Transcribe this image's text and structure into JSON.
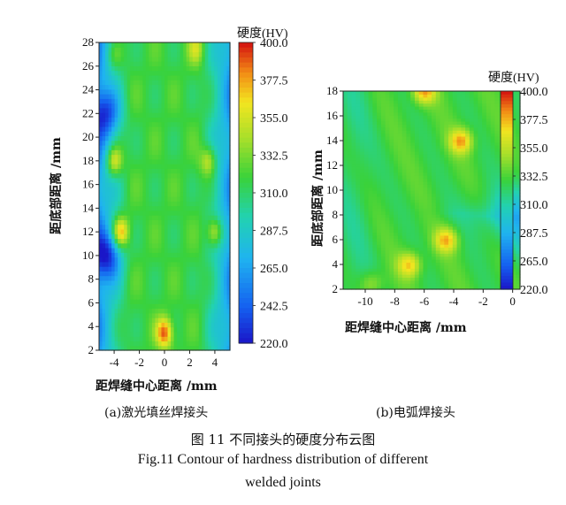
{
  "chart_data": [
    {
      "type": "heatmap",
      "panel_label": "(a)激光填丝焊接头",
      "xlabel": "距焊缝中心距离 /mm",
      "ylabel": "距底部距离 /mm",
      "x_ticks": [
        -4,
        -2,
        0,
        2,
        4
      ],
      "y_ticks": [
        2,
        4,
        6,
        8,
        10,
        12,
        14,
        16,
        18,
        20,
        22,
        24,
        26,
        28
      ],
      "xlim": [
        -5.2,
        5.2
      ],
      "ylim": [
        2,
        28
      ],
      "colorbar_title": "硬度(HV)",
      "colorbar_ticks": [
        "400.0",
        "377.5",
        "355.0",
        "332.5",
        "310.0",
        "287.5",
        "265.0",
        "242.5",
        "220.0"
      ],
      "value_range": [
        220,
        400
      ],
      "features": {
        "edge_min": 262,
        "center": 318,
        "low_spots": [
          {
            "x": -4.5,
            "y": 10,
            "v": 252
          },
          {
            "x": -4.6,
            "y": 22,
            "v": 262
          }
        ],
        "peaks": [
          {
            "x": -4,
            "y": 18,
            "v": 375
          },
          {
            "x": -3.5,
            "y": 12,
            "v": 385
          },
          {
            "x": 3.5,
            "y": 18,
            "v": 360
          },
          {
            "x": 4,
            "y": 12,
            "v": 370
          },
          {
            "x": 0,
            "y": 3.5,
            "v": 390
          },
          {
            "x": 2.5,
            "y": 27.5,
            "v": 350
          },
          {
            "x": -4,
            "y": 27,
            "v": 340
          }
        ]
      }
    },
    {
      "type": "heatmap",
      "panel_label": "(b)电弧焊接头",
      "xlabel": "距焊缝中心距离 /mm",
      "ylabel": "距底部距离 /mm",
      "x_ticks": [
        -10,
        -8,
        -6,
        -4,
        -2,
        0
      ],
      "y_ticks": [
        2,
        4,
        6,
        8,
        10,
        12,
        14,
        16,
        18
      ],
      "xlim": [
        -11.5,
        0.5
      ],
      "ylim": [
        2,
        18
      ],
      "colorbar_title": "硬度(HV)",
      "colorbar_ticks": [
        "400.0",
        "377.5",
        "355.0",
        "332.5",
        "310.0",
        "287.5",
        "265.0",
        "220.0"
      ],
      "value_range": [
        220,
        400
      ],
      "features": {
        "left_min": 262,
        "right_level": 320,
        "peaks": [
          {
            "x": -3.5,
            "y": 14,
            "v": 385
          },
          {
            "x": -4.5,
            "y": 6,
            "v": 380
          },
          {
            "x": -7,
            "y": 4,
            "v": 378
          },
          {
            "x": -6,
            "y": 18,
            "v": 385
          },
          {
            "x": -9.5,
            "y": 2.5,
            "v": 345
          }
        ]
      }
    }
  ],
  "captions": {
    "zh": "图 11   不同接头的硬度分布云图",
    "en_line1": "Fig.11   Contour of hardness distribution of different",
    "en_line2": "welded joints"
  }
}
